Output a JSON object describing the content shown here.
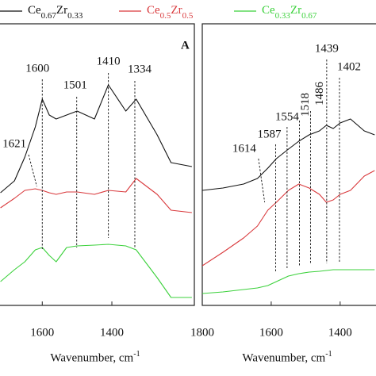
{
  "chart_data": [
    {
      "type": "line",
      "panel_label": "A",
      "xlabel": "Wavenumber, cm-1",
      "xlim": [
        1726,
        1163
      ],
      "xticks": [
        1600,
        1400
      ],
      "ylim": [
        0,
        355
      ],
      "x": [
        1720,
        1680,
        1650,
        1620,
        1600,
        1580,
        1560,
        1530,
        1500,
        1450,
        1410,
        1360,
        1330,
        1270,
        1230,
        1170
      ],
      "series": [
        {
          "name": "Ce0.67Zr0.33",
          "color": "#111111",
          "values": [
            142,
            157,
            187,
            225,
            260,
            240,
            235,
            240,
            245,
            235,
            278,
            245,
            260,
            215,
            180,
            175
          ]
        },
        {
          "name": "Ce0.5Zr0.5",
          "color": "#d9393c",
          "values": [
            123,
            135,
            145,
            147,
            145,
            142,
            140,
            143,
            143,
            140,
            145,
            143,
            160,
            140,
            120,
            117
          ]
        },
        {
          "name": "Ce0.33Zr0.67",
          "color": "#3bd13b",
          "values": [
            30,
            45,
            55,
            70,
            73,
            63,
            55,
            73,
            75,
            76,
            77,
            75,
            70,
            35,
            10,
            10
          ]
        }
      ],
      "annotations": [
        1621,
        1600,
        1501,
        1410,
        1334
      ]
    },
    {
      "type": "line",
      "xlabel": "Wavenumber, cm-1",
      "xlim": [
        1800,
        1296
      ],
      "xticks": [
        1800,
        1600,
        1400
      ],
      "ylim": [
        0,
        355
      ],
      "x": [
        1800,
        1740,
        1680,
        1640,
        1610,
        1585,
        1550,
        1520,
        1490,
        1460,
        1440,
        1420,
        1400,
        1370,
        1330,
        1300
      ],
      "series": [
        {
          "color": "#111111",
          "values": [
            145,
            148,
            153,
            160,
            173,
            185,
            197,
            207,
            215,
            220,
            227,
            223,
            230,
            235,
            220,
            215
          ]
        },
        {
          "color": "#d9393c",
          "values": [
            50,
            67,
            85,
            100,
            120,
            130,
            145,
            153,
            148,
            140,
            130,
            133,
            140,
            145,
            163,
            170
          ]
        },
        {
          "color": "#3bd13b",
          "values": [
            15,
            17,
            20,
            22,
            25,
            30,
            37,
            40,
            42,
            43,
            44,
            45,
            45,
            45,
            45,
            45
          ]
        }
      ],
      "annotations": [
        1614,
        1587,
        1554,
        1518,
        1486,
        1439,
        1402
      ]
    }
  ]
}
